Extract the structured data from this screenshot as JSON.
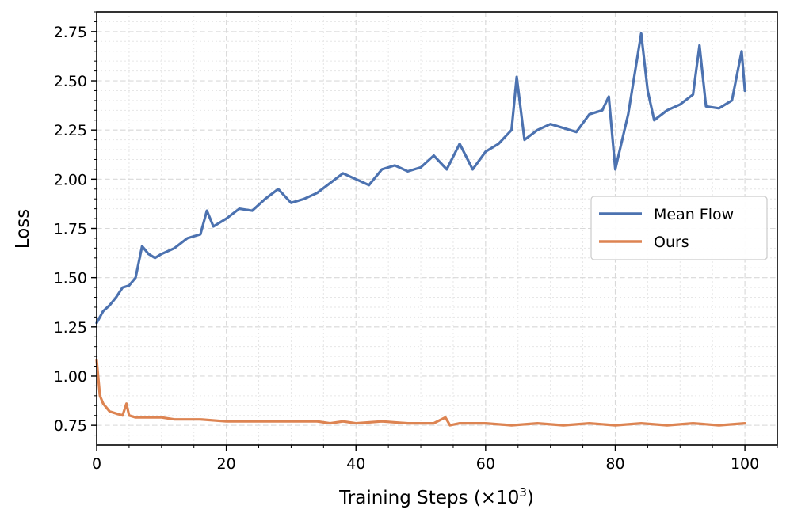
{
  "chart_data": {
    "type": "line",
    "title": "",
    "xlabel": "Training Steps (×10³)",
    "xlabel_main": "Training Steps (×10",
    "xlabel_sup": "3",
    "xlabel_close": ")",
    "ylabel": "Loss",
    "xlim": [
      0,
      105
    ],
    "ylim": [
      0.65,
      2.85
    ],
    "xticks": [
      0,
      20,
      40,
      60,
      80,
      100
    ],
    "xtick_labels": [
      "0",
      "20",
      "40",
      "60",
      "80",
      "100"
    ],
    "yticks": [
      0.75,
      1.0,
      1.25,
      1.5,
      1.75,
      2.0,
      2.25,
      2.5,
      2.75
    ],
    "ytick_labels": [
      "0.75",
      "1.00",
      "1.25",
      "1.50",
      "1.75",
      "2.00",
      "2.25",
      "2.50",
      "2.75"
    ],
    "grid": true,
    "legend_position": "center-right",
    "series": [
      {
        "name": "Mean Flow",
        "color": "#4c72b0",
        "x": [
          0,
          1,
          2,
          3,
          4,
          5,
          6,
          7,
          8,
          9,
          10,
          12,
          14,
          16,
          17,
          18,
          20,
          22,
          24,
          26,
          28,
          30,
          32,
          34,
          36,
          38,
          40,
          42,
          44,
          46,
          48,
          50,
          52,
          54,
          56,
          58,
          60,
          62,
          64,
          64.8,
          66,
          68,
          70,
          72,
          74,
          76,
          78,
          79,
          80,
          82,
          84,
          85,
          86,
          88,
          90,
          92,
          93,
          94,
          96,
          98,
          99.5,
          100
        ],
        "values": [
          1.27,
          1.33,
          1.36,
          1.4,
          1.45,
          1.46,
          1.5,
          1.66,
          1.62,
          1.6,
          1.62,
          1.65,
          1.7,
          1.72,
          1.84,
          1.76,
          1.8,
          1.85,
          1.84,
          1.9,
          1.95,
          1.88,
          1.9,
          1.93,
          1.98,
          2.03,
          2.0,
          1.97,
          2.05,
          2.07,
          2.04,
          2.06,
          2.12,
          2.05,
          2.18,
          2.05,
          2.14,
          2.18,
          2.25,
          2.52,
          2.2,
          2.25,
          2.28,
          2.26,
          2.24,
          2.33,
          2.35,
          2.42,
          2.05,
          2.33,
          2.74,
          2.45,
          2.3,
          2.35,
          2.38,
          2.43,
          2.68,
          2.37,
          2.36,
          2.4,
          2.65,
          2.45
        ]
      },
      {
        "name": "Ours",
        "color": "#dd8452",
        "x": [
          0,
          0.5,
          1,
          2,
          3,
          4,
          4.6,
          5,
          6,
          8,
          10,
          12,
          14,
          16,
          20,
          24,
          28,
          32,
          34,
          36,
          38,
          40,
          44,
          48,
          52,
          53.8,
          54.5,
          56,
          60,
          64,
          68,
          72,
          76,
          80,
          84,
          88,
          92,
          96,
          100
        ],
        "values": [
          1.08,
          0.9,
          0.86,
          0.82,
          0.81,
          0.8,
          0.86,
          0.8,
          0.79,
          0.79,
          0.79,
          0.78,
          0.78,
          0.78,
          0.77,
          0.77,
          0.77,
          0.77,
          0.77,
          0.76,
          0.77,
          0.76,
          0.77,
          0.76,
          0.76,
          0.79,
          0.75,
          0.76,
          0.76,
          0.75,
          0.76,
          0.75,
          0.76,
          0.75,
          0.76,
          0.75,
          0.76,
          0.75,
          0.76
        ]
      }
    ]
  }
}
